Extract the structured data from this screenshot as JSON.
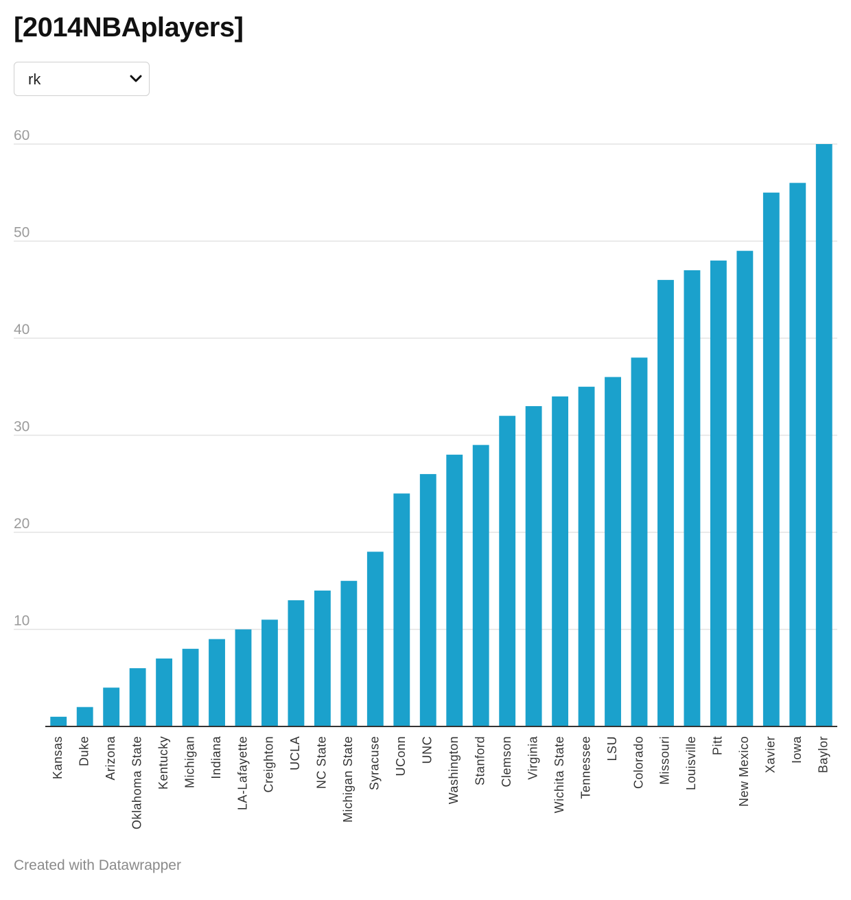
{
  "title": "[2014NBAplayers]",
  "selector": {
    "value": "rk"
  },
  "footer": "Created with Datawrapper",
  "colors": {
    "bar": "#1ba1cc",
    "grid": "#e3e3e3",
    "axis": "#333333",
    "tick_text": "#9b9b9b"
  },
  "chart_data": {
    "type": "bar",
    "categories": [
      "Kansas",
      "Duke",
      "Arizona",
      "Oklahoma State",
      "Kentucky",
      "Michigan",
      "Indiana",
      "LA-Lafayette",
      "Creighton",
      "UCLA",
      "NC State",
      "Michigan State",
      "Syracuse",
      "UConn",
      "UNC",
      "Washington",
      "Stanford",
      "Clemson",
      "Virginia",
      "Wichita State",
      "Tennessee",
      "LSU",
      "Colorado",
      "Missouri",
      "Louisville",
      "Pitt",
      "New Mexico",
      "Xavier",
      "Iowa",
      "Baylor"
    ],
    "values": [
      1,
      2,
      4,
      6,
      7,
      8,
      9,
      10,
      11,
      13,
      14,
      15,
      18,
      24,
      26,
      28,
      29,
      32,
      33,
      34,
      35,
      36,
      38,
      46,
      47,
      48,
      49,
      55,
      56,
      60
    ],
    "yticks": [
      10,
      20,
      30,
      40,
      50,
      60
    ],
    "ylim": [
      0,
      60
    ],
    "grid": true
  }
}
